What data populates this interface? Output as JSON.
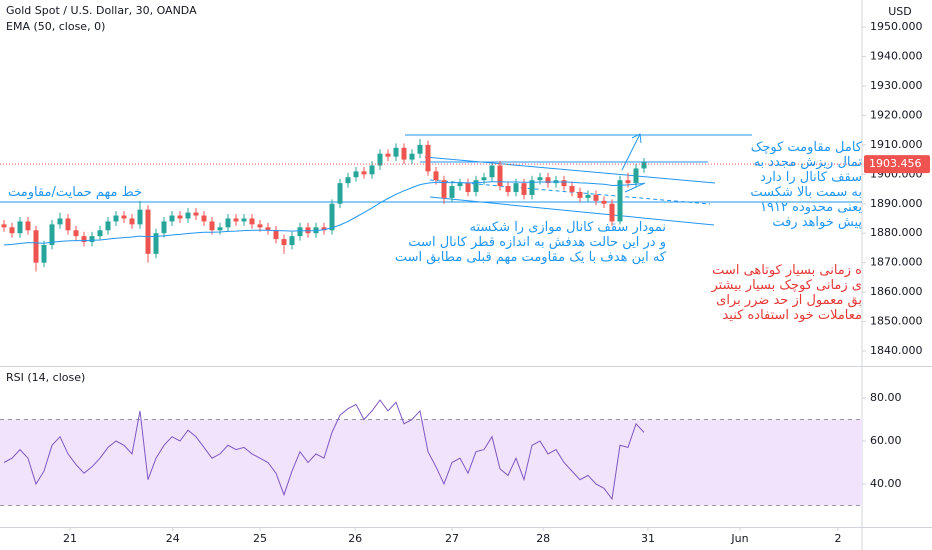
{
  "chart_data": {
    "type": "candlestick",
    "title": "Gold Spot / U.S. Dollar, 30, OANDA",
    "indicator": "EMA (50, close, 0)",
    "currency": "USD",
    "up_color": "#26a69a",
    "down_color": "#ef5350",
    "ema_color": "#2196f3",
    "open": [
      1883,
      1882,
      1880,
      1884,
      1881,
      1870,
      1876,
      1883,
      1885,
      1881,
      1879,
      1877,
      1879,
      1881,
      1884,
      1886,
      1885,
      1883,
      1888,
      1873,
      1880,
      1884,
      1886,
      1885,
      1887,
      1886,
      1884,
      1881,
      1882,
      1885,
      1884,
      1885,
      1883,
      1882,
      1881,
      1878,
      1876,
      1879,
      1882,
      1880,
      1882,
      1881,
      1890,
      1897,
      1899,
      1901,
      1900,
      1903,
      1907,
      1906,
      1909,
      1905,
      1907,
      1910,
      1901,
      1898,
      1892,
      1896,
      1897,
      1894,
      1898,
      1899,
      1903,
      1896,
      1894,
      1897,
      1893,
      1898,
      1899,
      1897,
      1898,
      1896,
      1894,
      1892,
      1893,
      1891,
      1890,
      1884,
      1898,
      1897,
      1902
    ],
    "high": [
      1884.5,
      1883.5,
      1885.5,
      1885.5,
      1882.5,
      1877.5,
      1884.5,
      1887,
      1886.5,
      1882.5,
      1880.5,
      1880.5,
      1882.5,
      1885.5,
      1887.5,
      1887.5,
      1886.5,
      1891,
      1889.5,
      1881.5,
      1885.5,
      1887.5,
      1887.5,
      1888.5,
      1888.5,
      1887.5,
      1885.5,
      1883.5,
      1886.5,
      1886.5,
      1886.5,
      1886.5,
      1884.5,
      1883.5,
      1882.5,
      1879.5,
      1880.5,
      1883.5,
      1883.5,
      1883.5,
      1883.5,
      1891.5,
      1898.5,
      1900.5,
      1902.5,
      1902.5,
      1904.5,
      1908.5,
      1908.5,
      1910.5,
      1910.5,
      1908.5,
      1912,
      1911.5,
      1902.5,
      1899.5,
      1897.5,
      1898.5,
      1898.5,
      1899.5,
      1900.5,
      1904,
      1904.5,
      1897.5,
      1898.5,
      1898.5,
      1899.5,
      1900.5,
      1900.5,
      1899.5,
      1899.5,
      1897.5,
      1895.5,
      1894.5,
      1894.5,
      1892.5,
      1891.5,
      1899.5,
      1900.5,
      1903.5,
      1905.5
    ],
    "low": [
      1880.5,
      1878.5,
      1878.5,
      1879.5,
      1867,
      1868.5,
      1874.5,
      1881.5,
      1879.5,
      1877.5,
      1875.5,
      1875.5,
      1877.5,
      1879.5,
      1882.5,
      1883.5,
      1881.5,
      1881.5,
      1870,
      1871.5,
      1878.5,
      1882.5,
      1883.5,
      1883.5,
      1884.5,
      1882.5,
      1879.5,
      1879.5,
      1880.5,
      1882.5,
      1882.5,
      1881.5,
      1880.5,
      1879.5,
      1876.5,
      1873,
      1874.5,
      1877.5,
      1878.5,
      1878.5,
      1879.5,
      1879.5,
      1888.5,
      1895.5,
      1897.5,
      1898.5,
      1898.5,
      1901.5,
      1904.5,
      1904.5,
      1903.5,
      1903.5,
      1905.5,
      1899.5,
      1896.5,
      1890,
      1890.5,
      1894.5,
      1892.5,
      1892.5,
      1896.5,
      1897.5,
      1894.5,
      1892.5,
      1892.5,
      1891.5,
      1891.5,
      1896.5,
      1895.5,
      1895.5,
      1894.5,
      1892.5,
      1890.5,
      1890.5,
      1889.5,
      1888.5,
      1882.5,
      1883,
      1895.5,
      1895.5,
      1900.5
    ],
    "close": [
      1882,
      1880,
      1884,
      1881,
      1870,
      1876,
      1883,
      1885,
      1881,
      1879,
      1877,
      1879,
      1881,
      1884,
      1886,
      1885,
      1883,
      1888,
      1873,
      1880,
      1884,
      1886,
      1885,
      1887,
      1886,
      1884,
      1881,
      1882,
      1885,
      1884,
      1885,
      1883,
      1882,
      1881,
      1878,
      1876,
      1879,
      1882,
      1880,
      1882,
      1881,
      1890,
      1897,
      1899,
      1901,
      1900,
      1903,
      1907,
      1906,
      1909,
      1905,
      1907,
      1910,
      1901,
      1898,
      1892,
      1896,
      1897,
      1894,
      1898,
      1899,
      1903,
      1896,
      1894,
      1897,
      1893,
      1898,
      1899,
      1897,
      1898,
      1896,
      1894,
      1892,
      1893,
      1891,
      1890,
      1884,
      1898,
      1897,
      1902,
      1904
    ],
    "ema": [
      1876,
      1876.2,
      1876.5,
      1876.8,
      1876.7,
      1876.6,
      1876.9,
      1877.2,
      1877.4,
      1877.5,
      1877.5,
      1877.6,
      1877.7,
      1878,
      1878.3,
      1878.5,
      1878.7,
      1879,
      1878.8,
      1878.9,
      1879.1,
      1879.4,
      1879.6,
      1879.9,
      1880.1,
      1880.3,
      1880.3,
      1880.4,
      1880.6,
      1880.7,
      1880.9,
      1881,
      1881,
      1881,
      1880.9,
      1880.8,
      1880.7,
      1880.8,
      1880.8,
      1880.9,
      1881.2,
      1881.8,
      1882.8,
      1884,
      1885.5,
      1887,
      1888.6,
      1890.3,
      1891.8,
      1893.2,
      1894.4,
      1895.5,
      1896.5,
      1897,
      1897.3,
      1897.2,
      1897.2,
      1897.2,
      1897.1,
      1897.2,
      1897.3,
      1897.5,
      1897.5,
      1897.4,
      1897.4,
      1897.3,
      1897.3,
      1897.4,
      1897.4,
      1897.4,
      1897.4,
      1897.3,
      1897.1,
      1897,
      1896.8,
      1896.6,
      1896.2,
      1896.3,
      1896.4,
      1896.6,
      1896.9
    ],
    "last_price": 1903.456,
    "last_price_color": "#ef5350",
    "xlim": [
      -0.5,
      107.25
    ],
    "xticks": [
      {
        "value": 8.25,
        "label": "21"
      },
      {
        "value": 21.1,
        "label": "24"
      },
      {
        "value": 32,
        "label": "25"
      },
      {
        "value": 43.9,
        "label": "26"
      },
      {
        "value": 56,
        "label": "27"
      },
      {
        "value": 67.4,
        "label": "28"
      },
      {
        "value": 80.5,
        "label": "31"
      },
      {
        "value": 92,
        "label": "Jun"
      },
      {
        "value": 104.25,
        "label": "2"
      }
    ],
    "ylim": [
      1834.9,
      1959.2
    ],
    "yticks": [
      {
        "value": 1840,
        "label": "1840.000"
      },
      {
        "value": 1850,
        "label": "1850.000"
      },
      {
        "value": 1860,
        "label": "1860.000"
      },
      {
        "value": 1870,
        "label": "1870.000"
      },
      {
        "value": 1880,
        "label": "1880.000"
      },
      {
        "value": 1890,
        "label": "1890.000"
      },
      {
        "value": 1900,
        "label": "1900.000"
      },
      {
        "value": 1910,
        "label": "1910.000"
      },
      {
        "value": 1920,
        "label": "1920.000"
      },
      {
        "value": 1930,
        "label": "1930.000"
      },
      {
        "value": 1940,
        "label": "1940.000"
      },
      {
        "value": 1950,
        "label": "1950.000"
      }
    ],
    "rsi": {
      "title": "RSI (14, close)",
      "color": "#7e57c2",
      "band": [
        30,
        70
      ],
      "band_color": "#f0e3fb",
      "values": [
        50,
        52,
        56,
        52,
        40,
        46,
        58,
        62,
        54,
        49,
        45,
        48,
        52,
        57,
        60,
        58,
        54,
        74,
        42,
        52,
        58,
        62,
        60,
        65,
        62,
        57,
        52,
        54,
        58,
        56,
        57,
        54,
        52,
        50,
        45,
        35,
        46,
        55,
        50,
        54,
        52,
        64,
        72,
        75,
        77,
        70,
        74,
        79,
        74,
        78,
        68,
        70,
        74,
        55,
        48,
        40,
        50,
        52,
        45,
        55,
        56,
        62,
        47,
        44,
        52,
        42,
        58,
        60,
        54,
        56,
        50,
        46,
        42,
        44,
        40,
        38,
        33,
        58,
        57,
        68,
        64
      ],
      "ylim": [
        20,
        94.4
      ],
      "yticks": [
        {
          "value": 40,
          "label": "40.00"
        },
        {
          "value": 60,
          "label": "60.00"
        },
        {
          "value": 80,
          "label": "80.00"
        }
      ]
    },
    "annotations": [
      {
        "color": "#2196f3",
        "lines": [
          "خط مهم حمایت/مقاومت"
        ]
      },
      {
        "color": "#2196f3",
        "lines": [
          "نمودار سقف کانال موازی را شکسته",
          "و در این حالت هدفش به اندازه قطر کانال است",
          "که این هدف با یک مقاومت مهم قبلی مطابق است"
        ]
      },
      {
        "color": "#2196f3",
        "lines": [
          "کامل مقاومت کوچک",
          "تمال ریزش مجدد به",
          "سقف کانال را دارد",
          "به سمت بالا شکست",
          "یعنی محدوده ۱۹۱۲",
          "پیش خواهد رفت"
        ]
      },
      {
        "color": "#e53935",
        "lines": [
          "ه زمانی بسیار کوتاهی است",
          "ی زمانی کوچک بسیار بیشتر",
          "بق معمول از حد ضرر برای",
          "معاملات خود استفاده کنید"
        ]
      }
    ]
  }
}
